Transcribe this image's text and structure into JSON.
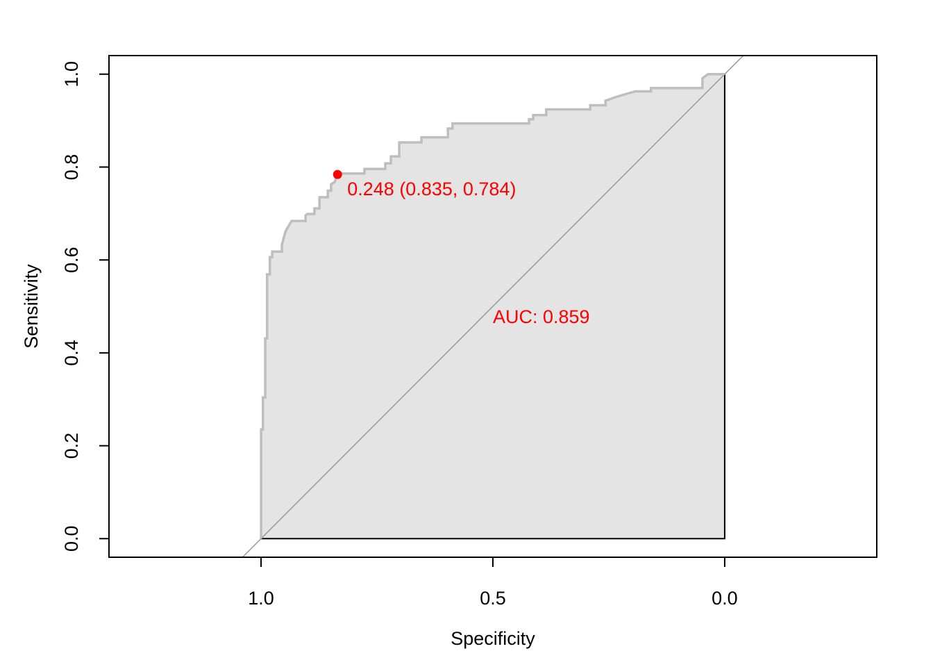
{
  "chart_data": {
    "type": "line",
    "x_label": "Specificity",
    "y_label": "Sensitivity",
    "xlim": [
      1.328,
      -0.328
    ],
    "ylim": [
      -0.04,
      1.04
    ],
    "xticks": [
      {
        "value": 1,
        "label": "1.0"
      },
      {
        "value": 0.5,
        "label": "0.5"
      },
      {
        "value": 0,
        "label": "0.0"
      }
    ],
    "yticks": [
      {
        "value": 0,
        "label": "0.0"
      },
      0.2,
      0.4,
      0.6,
      0.8,
      {
        "value": 1,
        "label": "1.0"
      }
    ],
    "x": [
      1,
      1,
      0.996,
      0.996,
      0.991,
      0.991,
      0.987,
      0.987,
      0.981,
      0.981,
      0.976,
      0.976,
      0.955,
      0.955,
      0.948,
      0.945,
      0.94,
      0.934,
      0.904,
      0.904,
      0.9,
      0.885,
      0.885,
      0.874,
      0.874,
      0.856,
      0.856,
      0.849,
      0.849,
      0.841,
      0.835,
      0.777,
      0.777,
      0.732,
      0.732,
      0.72,
      0.72,
      0.702,
      0.702,
      0.654,
      0.654,
      0.597,
      0.597,
      0.587,
      0.587,
      0.422,
      0.422,
      0.413,
      0.413,
      0.385,
      0.385,
      0.29,
      0.29,
      0.257,
      0.257,
      0.234,
      0.193,
      0.159,
      0.159,
      0.048,
      0.048,
      0.036,
      0
    ],
    "series": [
      {
        "color": "#bebebe",
        "values": [
          0,
          0.235,
          0.235,
          0.304,
          0.304,
          0.431,
          0.431,
          0.569,
          0.569,
          0.606,
          0.606,
          0.618,
          0.618,
          0.633,
          0.659,
          0.666,
          0.674,
          0.684,
          0.684,
          0.696,
          0.699,
          0.699,
          0.711,
          0.711,
          0.735,
          0.735,
          0.749,
          0.749,
          0.763,
          0.768,
          0.786,
          0.786,
          0.796,
          0.796,
          0.808,
          0.808,
          0.823,
          0.823,
          0.853,
          0.853,
          0.864,
          0.864,
          0.883,
          0.883,
          0.894,
          0.894,
          0.903,
          0.903,
          0.912,
          0.912,
          0.924,
          0.924,
          0.933,
          0.933,
          0.943,
          0.951,
          0.963,
          0.963,
          0.97,
          0.97,
          0.991,
          1,
          1
        ]
      }
    ],
    "fill_color": "#e4e4e4",
    "diagonal_color": "#999999",
    "threshold_point": {
      "x": 0.835,
      "y": 0.784,
      "color": "#ff0000",
      "label": "0.248 (0.835, 0.784)"
    },
    "auc_label": "AUC: 0.859",
    "annotation_color": "#ff0000"
  }
}
